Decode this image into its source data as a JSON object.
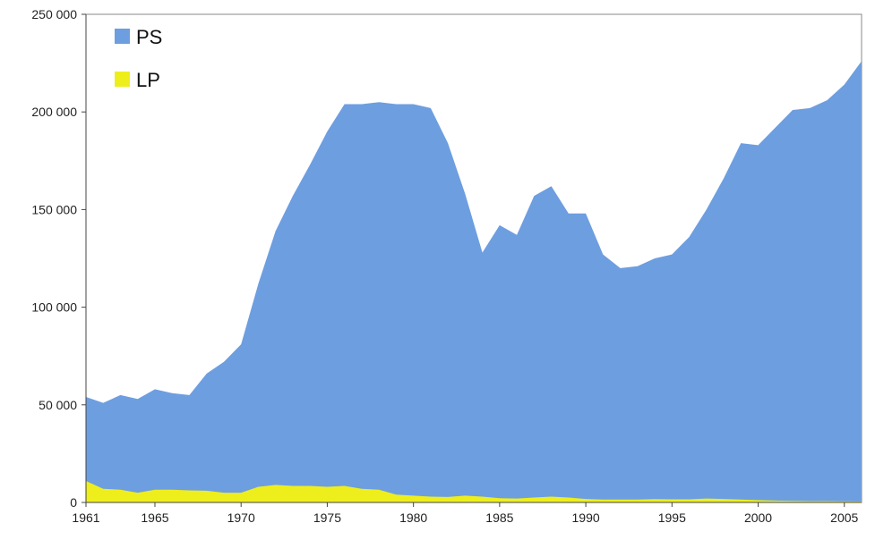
{
  "chart_data": {
    "type": "area",
    "stacked": true,
    "x": [
      1961,
      1962,
      1963,
      1964,
      1965,
      1966,
      1967,
      1968,
      1969,
      1970,
      1971,
      1972,
      1973,
      1974,
      1975,
      1976,
      1977,
      1978,
      1979,
      1980,
      1981,
      1982,
      1983,
      1984,
      1985,
      1986,
      1987,
      1988,
      1989,
      1990,
      1991,
      1992,
      1993,
      1994,
      1995,
      1996,
      1997,
      1998,
      1999,
      2000,
      2001,
      2002,
      2003,
      2004,
      2005,
      2006
    ],
    "series": [
      {
        "name": "PS",
        "color": "#6d9ee0",
        "totals": [
          54000,
          51000,
          55000,
          53000,
          58000,
          56000,
          55000,
          66000,
          72000,
          81000,
          112000,
          139000,
          157000,
          173000,
          190000,
          204000,
          204000,
          205000,
          204000,
          204000,
          202000,
          184000,
          158000,
          128000,
          142000,
          137000,
          157000,
          162000,
          148000,
          148000,
          127000,
          120000,
          121000,
          125000,
          127000,
          136000,
          150000,
          166000,
          184000,
          183000,
          192000,
          201000,
          202000,
          206000,
          214000,
          226000
        ]
      },
      {
        "name": "LP",
        "color": "#eeee1c",
        "values": [
          11000,
          7000,
          6500,
          5000,
          6500,
          6500,
          6200,
          6000,
          5000,
          5000,
          8000,
          9000,
          8500,
          8500,
          8000,
          8500,
          7000,
          6500,
          4000,
          3500,
          3000,
          2800,
          3500,
          3000,
          2200,
          2000,
          2500,
          3000,
          2500,
          1800,
          1500,
          1500,
          1500,
          1700,
          1600,
          1600,
          2000,
          1800,
          1500,
          1200,
          1000,
          800,
          700,
          700,
          600,
          500
        ]
      }
    ],
    "y_tick_values": [
      0,
      50000,
      100000,
      150000,
      200000,
      250000
    ],
    "y_tick_labels": [
      "0",
      "50 000",
      "100 000",
      "150 000",
      "200 000",
      "250 000"
    ],
    "x_tick_labels": [
      "1961",
      "1965",
      "1970",
      "1975",
      "1980",
      "1985",
      "1990",
      "1995",
      "2000",
      "2005"
    ],
    "x_tick_values": [
      1961,
      1965,
      1970,
      1975,
      1980,
      1985,
      1990,
      1995,
      2000,
      2005
    ],
    "xlim": [
      1961,
      2006
    ],
    "ylim": [
      0,
      250000
    ],
    "title": "",
    "xlabel": "",
    "ylabel": "",
    "grid": false,
    "legend_position": "top-left"
  }
}
